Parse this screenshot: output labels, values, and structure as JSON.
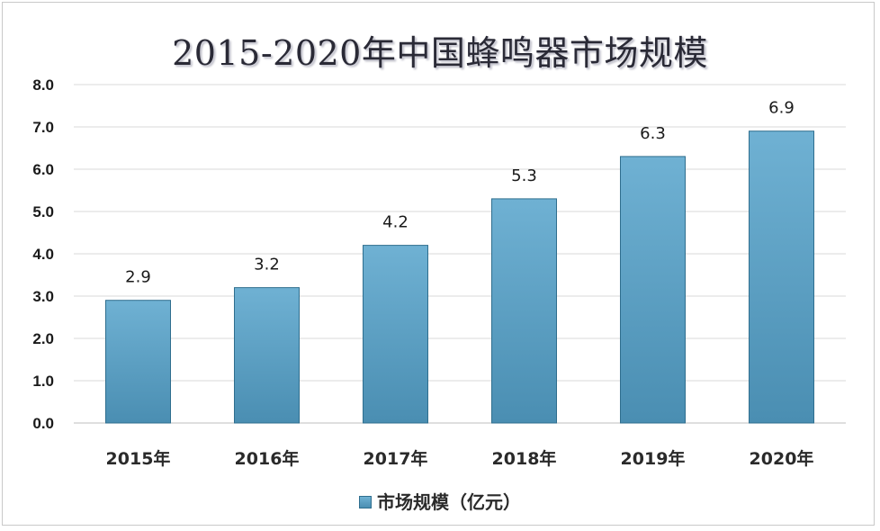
{
  "chart_data": {
    "type": "bar",
    "title": "2015-2020年中国蜂鸣器市场规模",
    "categories": [
      "2015年",
      "2016年",
      "2017年",
      "2018年",
      "2019年",
      "2020年"
    ],
    "series": [
      {
        "name": "市场规模（亿元）",
        "values": [
          2.9,
          3.2,
          4.2,
          5.3,
          6.3,
          6.9
        ]
      }
    ],
    "data_labels": [
      "2.9",
      "3.2",
      "4.2",
      "5.3",
      "6.3",
      "6.9"
    ],
    "ylim": [
      0,
      8
    ],
    "yticks": [
      "0.0",
      "1.0",
      "2.0",
      "3.0",
      "4.0",
      "5.0",
      "6.0",
      "7.0",
      "8.0"
    ],
    "grid": true,
    "legend_position": "bottom",
    "colors": {
      "bar_top": "#6fb1d3",
      "bar_bottom": "#4a8eb2",
      "bar_edge": "#2f6e8e",
      "grid": "#d9d9d9",
      "axis": "#bfbfbf"
    }
  }
}
